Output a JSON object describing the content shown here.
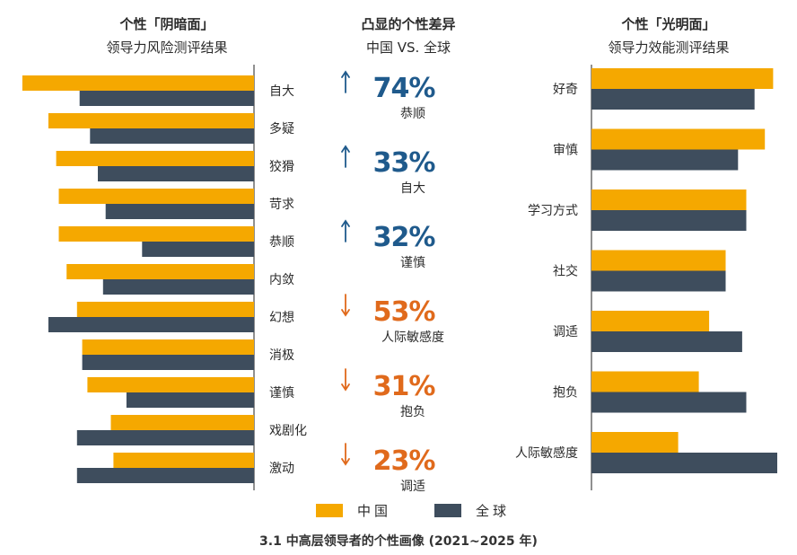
{
  "colors": {
    "china": "#F5A800",
    "global": "#3E4D5D",
    "up": "#1F5A8C",
    "down": "#E06A1C"
  },
  "left_header": {
    "title": "个性「阴暗面」",
    "subtitle": "领导力风险测评结果"
  },
  "middle_header": {
    "title": "凸显的个性差异",
    "subtitle": "中国 VS. 全球"
  },
  "right_header": {
    "title": "个性「光明面」",
    "subtitle": "领导力效能测评结果"
  },
  "highlights": [
    {
      "percent": "74%",
      "direction": "up",
      "label": "恭顺"
    },
    {
      "percent": "33%",
      "direction": "up",
      "label": "自大"
    },
    {
      "percent": "32%",
      "direction": "up",
      "label": "谨慎"
    },
    {
      "percent": "53%",
      "direction": "down",
      "label": "人际敏感度"
    },
    {
      "percent": "31%",
      "direction": "down",
      "label": "抱负"
    },
    {
      "percent": "23%",
      "direction": "down",
      "label": "调适"
    }
  ],
  "legend": {
    "china": "中国",
    "global": "全球"
  },
  "caption": "3.1 中高层领导者的个性画像 (2021~2025 年)",
  "chart_data": [
    {
      "type": "bar",
      "orientation": "horizontal",
      "direction": "leftward",
      "title": "个性「阴暗面」",
      "subtitle": "领导力风险测评结果",
      "categories": [
        "自大",
        "多疑",
        "狡猾",
        "苛求",
        "恭顺",
        "内敛",
        "幻想",
        "消极",
        "谨慎",
        "戏剧化",
        "激动"
      ],
      "series": [
        {
          "name": "中国",
          "values": [
            89,
            79,
            76,
            75,
            75,
            72,
            68,
            66,
            64,
            55,
            54
          ]
        },
        {
          "name": "全球",
          "values": [
            67,
            63,
            60,
            57,
            43,
            58,
            79,
            66,
            49,
            68,
            68
          ]
        }
      ],
      "xlim": [
        0,
        100
      ],
      "grid": false
    },
    {
      "type": "bar",
      "orientation": "horizontal",
      "title": "个性「光明面」",
      "subtitle": "领导力效能测评结果",
      "categories": [
        "好奇",
        "审慎",
        "学习方式",
        "社交",
        "调适",
        "抱负",
        "人际敏感度"
      ],
      "series": [
        {
          "name": "中国",
          "values": [
            88,
            84,
            75,
            65,
            57,
            52,
            42
          ]
        },
        {
          "name": "全球",
          "values": [
            79,
            71,
            75,
            65,
            73,
            75,
            90
          ]
        }
      ],
      "xlim": [
        0,
        100
      ],
      "grid": false
    }
  ]
}
